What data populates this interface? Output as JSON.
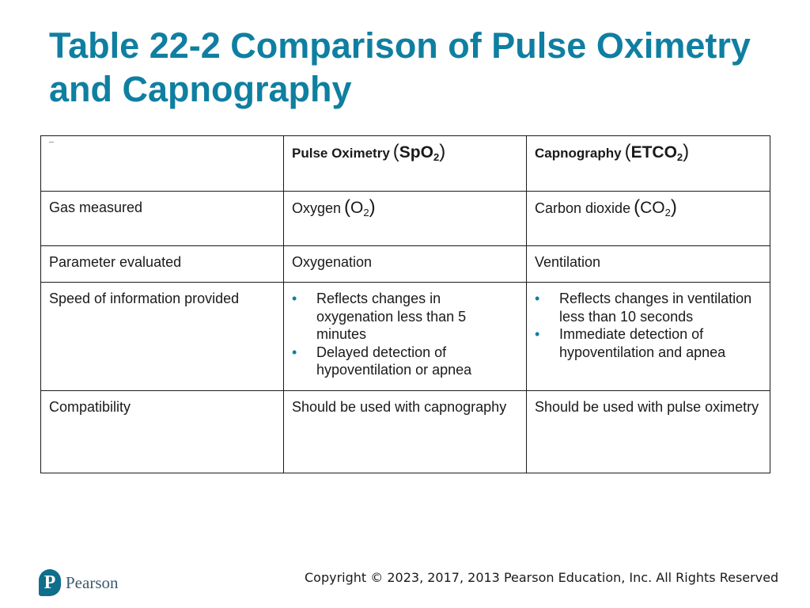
{
  "slide": {
    "title": "Table 22-2 Comparison of Pulse Oximetry and Capnography"
  },
  "table": {
    "header": {
      "col1": "",
      "col2": {
        "label": "Pulse Oximetry",
        "formula_main": "SpO",
        "formula_sub": "2"
      },
      "col3": {
        "label": "Capnography",
        "formula_main": "ETCO",
        "formula_sub": "2"
      }
    },
    "rows": [
      {
        "label": "Gas measured",
        "col2": {
          "text": "Oxygen",
          "formula_main": "O",
          "formula_sub": "2"
        },
        "col3": {
          "text": "Carbon dioxide",
          "formula_main": "CO",
          "formula_sub": "2"
        }
      },
      {
        "label": "Parameter evaluated",
        "col2": "Oxygenation",
        "col3": "Ventilation"
      },
      {
        "label": "Speed of information provided",
        "col2": [
          "Reflects changes in oxygenation less than 5 minutes",
          "Delayed detection of hypoventilation or apnea"
        ],
        "col3": [
          "Reflects changes in ventilation less than 10 seconds",
          "Immediate detection of hypoventilation and apnea"
        ]
      },
      {
        "label": "Compatibility",
        "col2": "Should be used with capnography",
        "col3": "Should be used with pulse oximetry"
      }
    ],
    "bullet_glyph": "•"
  },
  "footer": {
    "logo_text": "Pearson",
    "logo_icon": "pearson-p-icon",
    "copyright": "Copyright © 2023, 2017, 2013 Pearson Education, Inc. All Rights Reserved"
  },
  "colors": {
    "accent": "#0f7fa1",
    "logo": "#0e6e8c"
  }
}
